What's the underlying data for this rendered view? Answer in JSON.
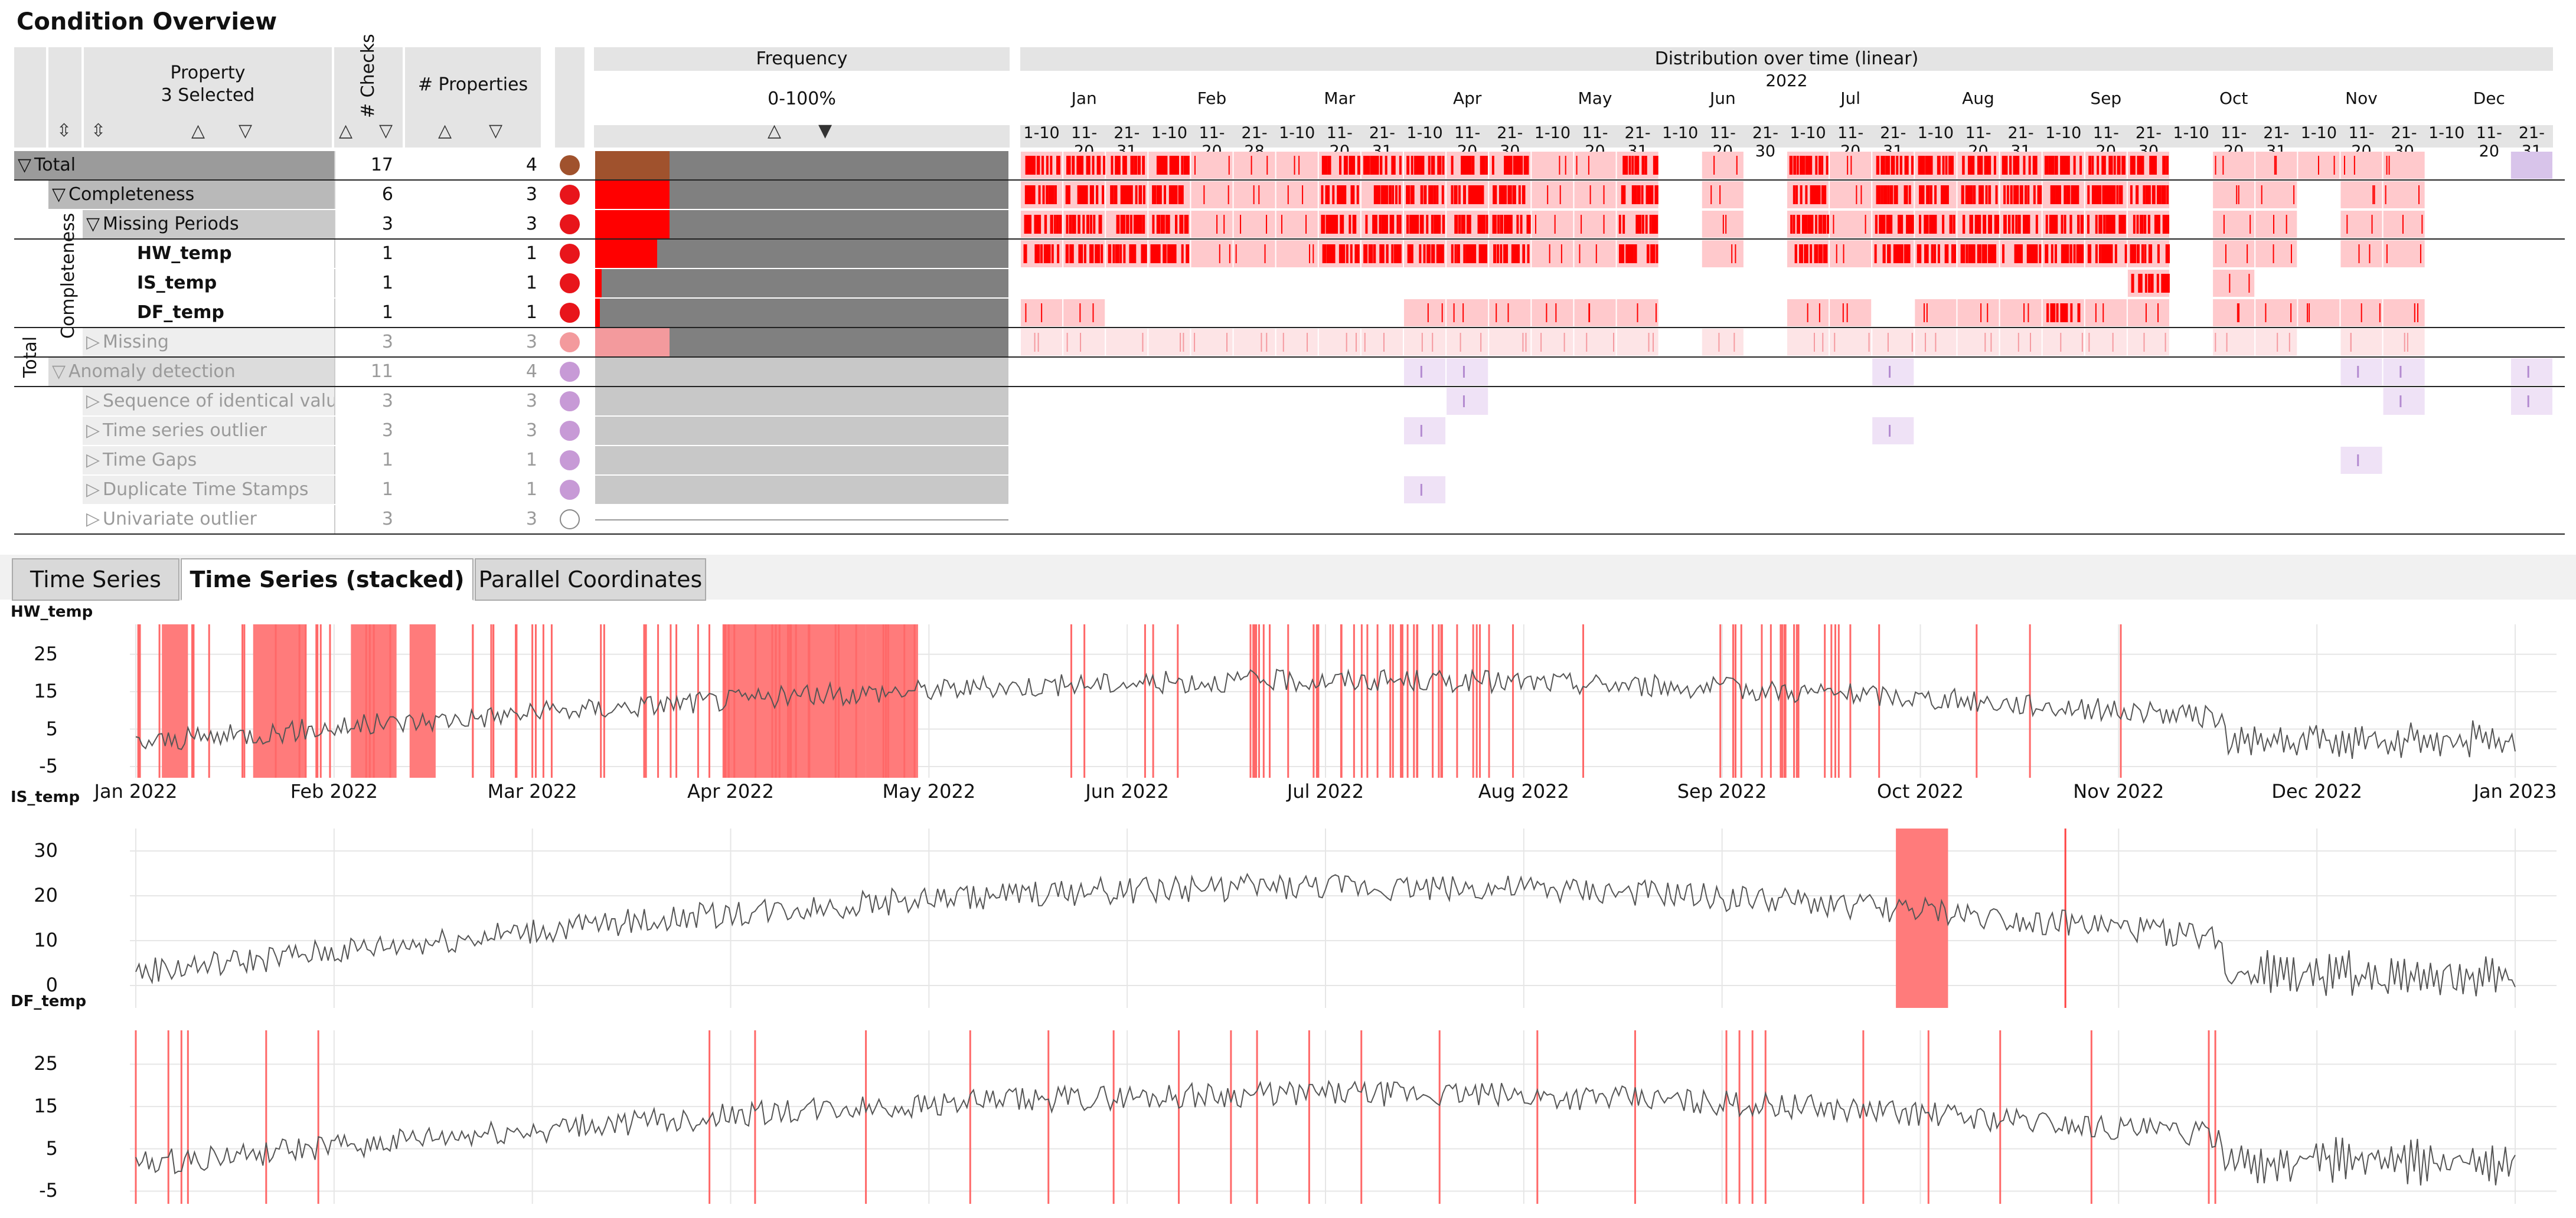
{
  "title": "Condition Overview",
  "header": {
    "property_title": "Property",
    "property_sub": "3 Selected",
    "checks": "# Checks",
    "properties": "# Properties",
    "frequency": "Frequency",
    "frequency_range": "0-100%",
    "distribution": "Distribution over time (linear)",
    "year": "2022",
    "months": [
      "Jan",
      "Feb",
      "Mar",
      "Apr",
      "May",
      "Jun",
      "Jul",
      "Aug",
      "Sep",
      "Oct",
      "Nov",
      "Dec"
    ],
    "period_labels": [
      "1-10",
      "11-20",
      "21-31",
      "1-10",
      "11-20",
      "21-28",
      "1-10",
      "11-20",
      "21-31",
      "1-10",
      "11-20",
      "21-30",
      "1-10",
      "11-20",
      "21-31",
      "1-10",
      "11-20",
      "21-30",
      "1-10",
      "11-20",
      "21-31",
      "1-10",
      "11-20",
      "21-31",
      "1-10",
      "11-20",
      "21-30",
      "1-10",
      "11-20",
      "21-31",
      "1-10",
      "11-20",
      "21-30",
      "1-10",
      "11-20",
      "21-31"
    ]
  },
  "side_labels": {
    "total": "Total",
    "completeness": "Completeness"
  },
  "rows": [
    {
      "label": "Total",
      "checks": "17",
      "props": "4",
      "color": "#a0522d",
      "freq": 0.18,
      "bg": "#9b9b9b",
      "indent": 0,
      "bold": false,
      "faded": false,
      "toggle": "▽"
    },
    {
      "label": "Completeness",
      "checks": "6",
      "props": "3",
      "color": "#e8151b",
      "freq": 0.18,
      "bg": "#b9b9b9",
      "indent": 1,
      "bold": false,
      "faded": false,
      "toggle": "▽"
    },
    {
      "label": "Missing Periods",
      "checks": "3",
      "props": "3",
      "color": "#e8151b",
      "freq": 0.18,
      "bg": "#c9c9c9",
      "indent": 2,
      "bold": false,
      "faded": false,
      "toggle": "▽"
    },
    {
      "label": "HW_temp",
      "checks": "1",
      "props": "1",
      "color": "#e8151b",
      "freq": 0.15,
      "bg": "#ffffff",
      "indent": 3,
      "bold": true,
      "faded": false,
      "toggle": ""
    },
    {
      "label": "IS_temp",
      "checks": "1",
      "props": "1",
      "color": "#e8151b",
      "freq": 0.015,
      "bg": "#ffffff",
      "indent": 3,
      "bold": true,
      "faded": false,
      "toggle": ""
    },
    {
      "label": "DF_temp",
      "checks": "1",
      "props": "1",
      "color": "#e8151b",
      "freq": 0.012,
      "bg": "#ffffff",
      "indent": 3,
      "bold": true,
      "faded": false,
      "toggle": ""
    },
    {
      "label": "Missing",
      "checks": "3",
      "props": "3",
      "color": "#f39a9d",
      "freq": 0.18,
      "bg": "#eeeeee",
      "indent": 2,
      "bold": false,
      "faded": true,
      "toggle": "▷"
    },
    {
      "label": "Anomaly detection",
      "checks": "11",
      "props": "4",
      "color": "#c79ad6",
      "freq": 0.0,
      "bg": "#dcdcdc",
      "indent": 1,
      "bold": false,
      "faded": true,
      "toggle": "▽"
    },
    {
      "label": "Sequence of identical values",
      "checks": "3",
      "props": "3",
      "color": "#c79ad6",
      "freq": 0.0,
      "bg": "#eeeeee",
      "indent": 2,
      "bold": false,
      "faded": true,
      "toggle": "▷"
    },
    {
      "label": "Time series outlier",
      "checks": "3",
      "props": "3",
      "color": "#c79ad6",
      "freq": 0.0,
      "bg": "#eeeeee",
      "indent": 2,
      "bold": false,
      "faded": true,
      "toggle": "▷"
    },
    {
      "label": "Time Gaps",
      "checks": "1",
      "props": "1",
      "color": "#c79ad6",
      "freq": 0.0,
      "bg": "#eeeeee",
      "indent": 2,
      "bold": false,
      "faded": true,
      "toggle": "▷"
    },
    {
      "label": "Duplicate Time Stamps",
      "checks": "1",
      "props": "1",
      "color": "#c79ad6",
      "freq": 0.0,
      "bg": "#eeeeee",
      "indent": 2,
      "bold": false,
      "faded": true,
      "toggle": "▷"
    },
    {
      "label": "Univariate outlier",
      "checks": "3",
      "props": "3",
      "color": "#ffffff",
      "freq": 0.0,
      "bg": "#ffffff",
      "indent": 2,
      "bold": false,
      "faded": true,
      "toggle": "▷"
    }
  ],
  "tabs": [
    {
      "label": "Time Series",
      "active": false
    },
    {
      "label": "Time Series (stacked)",
      "active": true
    },
    {
      "label": "Parallel Coordinates",
      "active": false
    }
  ],
  "panels": [
    {
      "name": "HW_temp",
      "yticks": [
        "25",
        "15",
        "5",
        "-5"
      ]
    },
    {
      "name": "IS_temp",
      "yticks": [
        "30",
        "20",
        "10",
        "0"
      ]
    },
    {
      "name": "DF_temp",
      "yticks": [
        "25",
        "15",
        "5",
        "-5"
      ]
    }
  ],
  "xticks": [
    "Jan 2022",
    "Feb 2022",
    "Mar 2022",
    "Apr 2022",
    "May 2022",
    "Jun 2022",
    "Jul 2022",
    "Aug 2022",
    "Sep 2022",
    "Oct 2022",
    "Nov 2022",
    "Dec 2022",
    "Jan 2023"
  ],
  "colors": {
    "missing": "#ff0000",
    "missing_light": "#ffc9cc",
    "anomaly": "#b38ad0",
    "anomaly_light": "#efe2f6",
    "series": "#555555"
  }
}
